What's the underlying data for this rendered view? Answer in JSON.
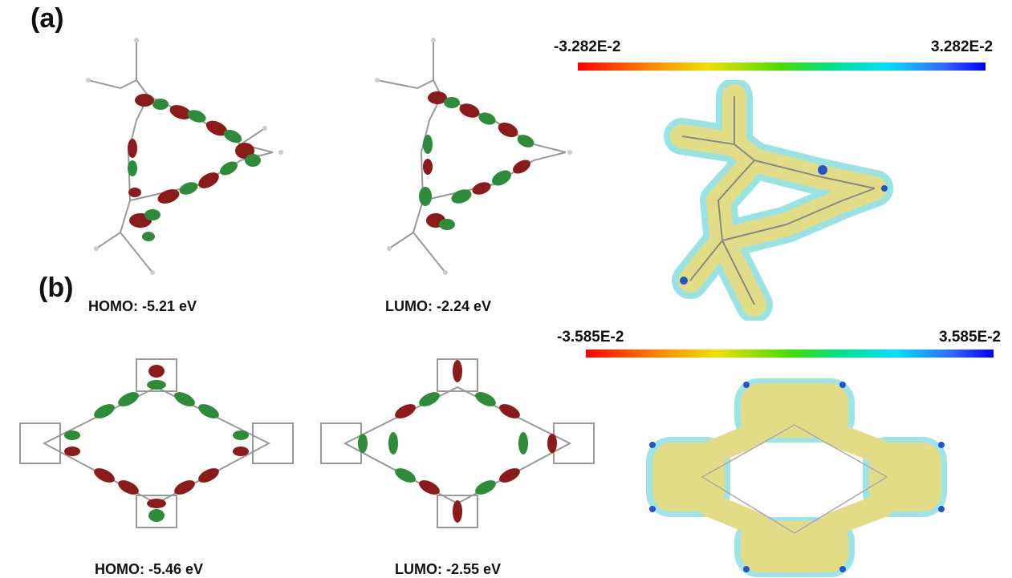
{
  "panel_a": {
    "label": "(a)",
    "homo_label": "HOMO: -5.21 eV",
    "lumo_label": "LUMO: -2.24 eV",
    "colorbar": {
      "min_label": "-3.282E-2",
      "max_label": "3.282E-2"
    }
  },
  "panel_b": {
    "label": "(b)",
    "homo_label": "HOMO: -5.46 eV",
    "lumo_label": "LUMO: -2.55 eV",
    "colorbar": {
      "min_label": "-3.585E-2",
      "max_label": "3.585E-2"
    }
  },
  "colors": {
    "orbital_positive": "#8b1a1a",
    "orbital_negative": "#2e8b3a",
    "atom_carbon": "#8a8a8a",
    "atom_hydrogen": "#e0e0e0",
    "esp_surface": "#e3dc86",
    "esp_edge_cyan": "#8fe0e0",
    "esp_edge_blue": "#2255cc"
  }
}
